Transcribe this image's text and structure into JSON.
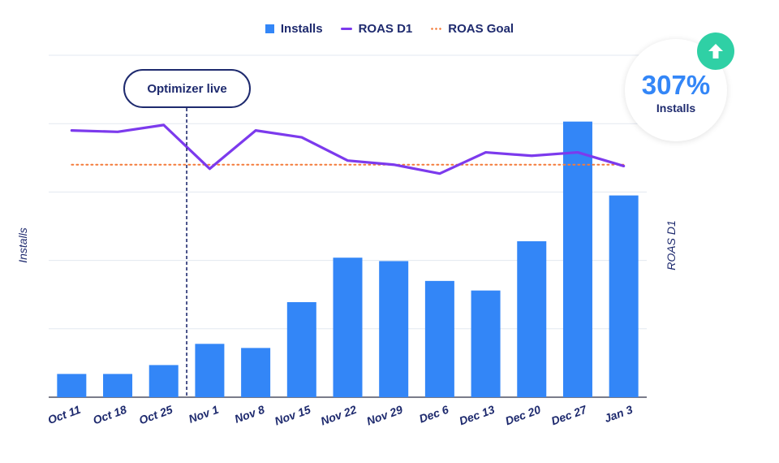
{
  "legend": {
    "installs": "Installs",
    "roas_d1": "ROAS D1",
    "roas_goal": "ROAS Goal"
  },
  "axes": {
    "left_label": "Installs",
    "right_label": "ROAS D1"
  },
  "annotation": {
    "label": "Optimizer live",
    "position_between": [
      "Oct 25",
      "Nov 1"
    ]
  },
  "stat": {
    "value": "307%",
    "label": "Installs",
    "icon": "arrow-up-icon"
  },
  "colors": {
    "bars": "#3386f7",
    "roas_line": "#7c3aed",
    "goal_line": "#f47b3a",
    "text": "#1e2a6e",
    "badge": "#2fd0a5",
    "grid": "#e3e8f0"
  },
  "chart_data": {
    "type": "bar",
    "categories": [
      "Oct 11",
      "Oct 18",
      "Oct 25",
      "Nov 1",
      "Nov 8",
      "Nov 15",
      "Nov 22",
      "Nov 29",
      "Dec 6",
      "Dec 13",
      "Dec 20",
      "Dec 27",
      "Jan 3"
    ],
    "series": [
      {
        "name": "Installs",
        "type": "bar",
        "axis": "left",
        "values": [
          0.34,
          0.34,
          0.47,
          0.78,
          0.72,
          1.39,
          2.04,
          1.99,
          1.7,
          1.56,
          2.28,
          4.03,
          2.95
        ]
      },
      {
        "name": "ROAS D1",
        "type": "line",
        "axis": "right",
        "values": [
          3.9,
          3.88,
          3.98,
          3.34,
          3.9,
          3.8,
          3.46,
          3.4,
          3.27,
          3.58,
          3.53,
          3.58,
          3.38
        ]
      },
      {
        "name": "ROAS Goal",
        "type": "line",
        "style": "dotted",
        "axis": "right",
        "values": [
          3.4,
          3.4,
          3.4,
          3.4,
          3.4,
          3.4,
          3.4,
          3.4,
          3.4,
          3.4,
          3.4,
          3.4,
          3.4
        ]
      }
    ],
    "ylim": [
      0,
      5
    ],
    "y2lim": [
      0,
      5
    ],
    "grid": true,
    "legend_position": "top-center",
    "xlabel": "",
    "ylabel": "Installs",
    "y2label": "ROAS D1"
  }
}
